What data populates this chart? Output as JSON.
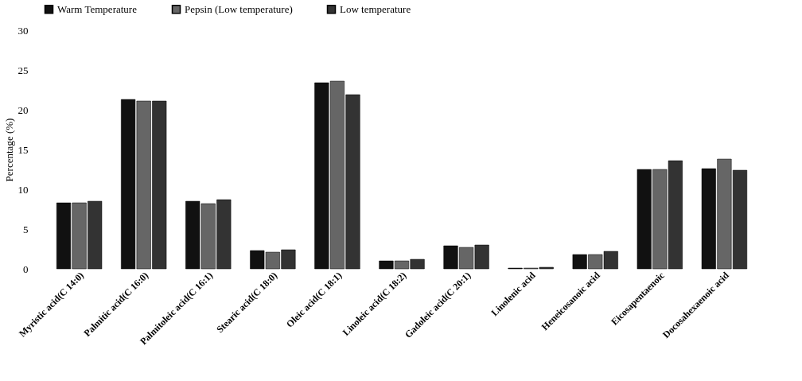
{
  "chart_data": {
    "type": "bar",
    "ylabel": "Percentage (%)",
    "categories": [
      "Myristic acid(C 14:0)",
      "Palmitic acid(C 16:0)",
      "Palmitoleic acid(C 16:1)",
      "Stearic acid(C 18:0)",
      "Oleic acid(C 18:1)",
      "Linoleic acid(C 18:2)",
      "Gadoleic acid(C 20:1)",
      "Linolenic acid",
      "Heneicosanoic acid",
      "Eicosapentaenoic",
      "Docosahexaenoic acid"
    ],
    "series": [
      {
        "name": "Warm Temperature",
        "color": "#111111",
        "values": [
          8.3,
          21.3,
          8.5,
          2.3,
          23.4,
          1.0,
          2.9,
          0.1,
          1.8,
          12.5,
          12.6
        ]
      },
      {
        "name": "Pepsin (Low temperature)",
        "color": "#666666",
        "values": [
          8.3,
          21.1,
          8.2,
          2.1,
          23.6,
          1.0,
          2.7,
          0.1,
          1.8,
          12.5,
          13.8
        ]
      },
      {
        "name": "Low temperature",
        "color": "#333333",
        "values": [
          8.5,
          21.1,
          8.7,
          2.4,
          21.9,
          1.2,
          3.0,
          0.2,
          2.2,
          13.6,
          12.4
        ]
      }
    ],
    "ylim": [
      0,
      30
    ],
    "yticks": [
      0,
      5,
      10,
      15,
      20,
      25,
      30
    ],
    "grid": false,
    "legend": "top"
  }
}
